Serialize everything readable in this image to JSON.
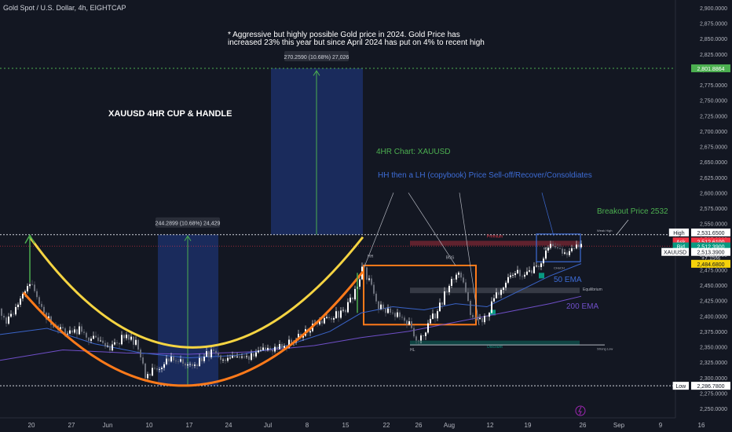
{
  "chart_data": {
    "type": "candlestick",
    "title": "Gold Spot / U.S. Dollar, 4h, EIGHTCAP",
    "ylim": [
      2250,
      2900
    ],
    "y_ticks": [
      "2,900.0000",
      "2,875.0000",
      "2,850.0000",
      "2,825.0000",
      "2,800.0000",
      "2,775.0000",
      "2,750.0000",
      "2,725.0000",
      "2,700.0000",
      "2,675.0000",
      "2,650.0000",
      "2,625.0000",
      "2,600.0000",
      "2,575.0000",
      "2,550.0000",
      "2,525.0000",
      "2,500.0000",
      "2,475.0000",
      "2,450.0000",
      "2,425.0000",
      "2,400.0000",
      "2,375.0000",
      "2,350.0000",
      "2,325.0000",
      "2,300.0000",
      "2,275.0000",
      "2,250.0000"
    ],
    "x_ticks": [
      "20",
      "27",
      "Jun",
      "10",
      "17",
      "24",
      "Jul",
      "8",
      "15",
      "22",
      "26",
      "Aug",
      "12",
      "19",
      "26",
      "Sep",
      "9",
      "16"
    ],
    "price_path": [
      [
        0,
        2412
      ],
      [
        8,
        2390
      ],
      [
        18,
        2405
      ],
      [
        30,
        2440
      ],
      [
        38,
        2452
      ],
      [
        48,
        2428
      ],
      [
        58,
        2400
      ],
      [
        70,
        2385
      ],
      [
        88,
        2370
      ],
      [
        100,
        2378
      ],
      [
        120,
        2360
      ],
      [
        140,
        2345
      ],
      [
        160,
        2370
      ],
      [
        175,
        2355
      ],
      [
        185,
        2305
      ],
      [
        200,
        2312
      ],
      [
        215,
        2330
      ],
      [
        230,
        2325
      ],
      [
        250,
        2320
      ],
      [
        270,
        2345
      ],
      [
        285,
        2330
      ],
      [
        300,
        2328
      ],
      [
        320,
        2335
      ],
      [
        340,
        2345
      ],
      [
        360,
        2350
      ],
      [
        380,
        2365
      ],
      [
        400,
        2385
      ],
      [
        420,
        2395
      ],
      [
        440,
        2410
      ],
      [
        455,
        2448
      ],
      [
        462,
        2478
      ],
      [
        470,
        2458
      ],
      [
        480,
        2420
      ],
      [
        495,
        2405
      ],
      [
        510,
        2400
      ],
      [
        522,
        2385
      ],
      [
        528,
        2360
      ],
      [
        540,
        2375
      ],
      [
        560,
        2415
      ],
      [
        575,
        2460
      ],
      [
        585,
        2475
      ],
      [
        592,
        2440
      ],
      [
        600,
        2400
      ],
      [
        612,
        2390
      ],
      [
        625,
        2415
      ],
      [
        640,
        2450
      ],
      [
        655,
        2470
      ],
      [
        670,
        2465
      ],
      [
        685,
        2478
      ],
      [
        700,
        2515
      ],
      [
        710,
        2505
      ],
      [
        720,
        2498
      ],
      [
        730,
        2508
      ],
      [
        740,
        2513
      ]
    ],
    "ema_50": [
      [
        0,
        2370
      ],
      [
        60,
        2380
      ],
      [
        120,
        2355
      ],
      [
        180,
        2340
      ],
      [
        240,
        2332
      ],
      [
        300,
        2336
      ],
      [
        360,
        2350
      ],
      [
        420,
        2375
      ],
      [
        460,
        2405
      ],
      [
        500,
        2415
      ],
      [
        540,
        2410
      ],
      [
        580,
        2420
      ],
      [
        620,
        2415
      ],
      [
        660,
        2440
      ],
      [
        700,
        2465
      ],
      [
        740,
        2485
      ]
    ],
    "ema_200": [
      [
        0,
        2328
      ],
      [
        80,
        2345
      ],
      [
        160,
        2340
      ],
      [
        240,
        2338
      ],
      [
        320,
        2342
      ],
      [
        400,
        2352
      ],
      [
        460,
        2365
      ],
      [
        520,
        2375
      ],
      [
        580,
        2390
      ],
      [
        640,
        2405
      ],
      [
        700,
        2420
      ],
      [
        740,
        2432
      ]
    ],
    "annotations": {
      "headline": "* Aggressive but highly possible Gold price in 2024. Gold Price has increased 23% this year but since April 2024 has put on 4% to recent high",
      "title": "XAUUSD 4HR CUP & HANDLE",
      "chart_label": "4HR Chart: XAUUSD",
      "hh_lh": "HH then a LH (copybook) Price Sell-off/Recover/Consoldiates",
      "breakout": "Breakout Price 2532",
      "ema50": "50 EMA",
      "ema200": "200 EMA",
      "measure_left": "244.2899 (10.68%) 24,429",
      "measure_right": "270.2590 (10.68%) 27,026",
      "premium": "Premium",
      "equilibrium": "Equilibrium",
      "discount": "Discount",
      "weak_high": "Weak High",
      "strong_low": "Strong Low",
      "bos": "BOS",
      "hh": "HH",
      "hl": "HL",
      "choch": "CHoCH"
    },
    "price_tags": [
      {
        "id": "target",
        "label": "",
        "value": "2,801.8864",
        "color": "#4caf50"
      },
      {
        "id": "high",
        "label": "High",
        "value": "2,531.6500",
        "color": "#ffffff"
      },
      {
        "id": "ask",
        "label": "Ask",
        "value": "2,512.6100",
        "color": "#f23645"
      },
      {
        "id": "bid",
        "label": "Bid",
        "value": "2,512.3900",
        "color": "#089981"
      },
      {
        "id": "symbol",
        "label": "XAUUSD",
        "value": "2,513.3900",
        "color": "#ffffff"
      },
      {
        "id": "change",
        "label": "",
        "value": "+7.15%",
        "color": "#131722"
      },
      {
        "id": "alert",
        "label": "",
        "value": "2,484.6800",
        "color": "#f5d20a"
      },
      {
        "id": "low",
        "label": "Low",
        "value": "2,286.7800",
        "color": "#ffffff"
      }
    ],
    "colors": {
      "bg": "#131722",
      "bull": "#ffffff",
      "bear": "#6b6f7a",
      "ema50": "#3a64c8",
      "ema200": "#6f4fc8",
      "cup_top": "#f5d442",
      "cup_bottom": "#ff7a1a",
      "green": "#4caf50",
      "box_orange": "#ff7a1a",
      "measure_fill": "#1c2f66",
      "blue_text": "#3d6cd6"
    }
  }
}
